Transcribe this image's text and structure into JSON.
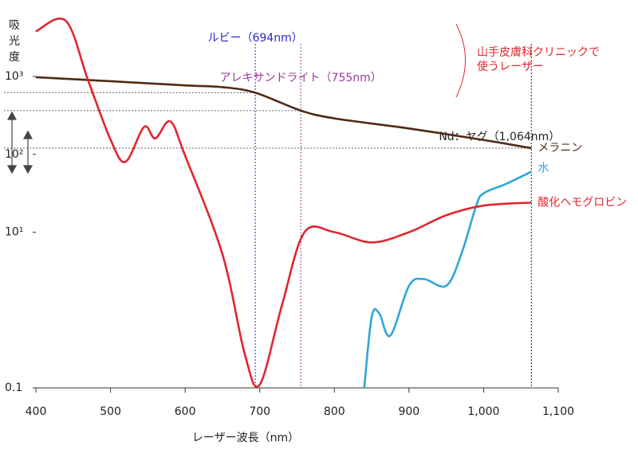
{
  "chart_data": {
    "type": "line",
    "xlabel": "レーザー波長（nm）",
    "ylabel": [
      "吸",
      "光",
      "度"
    ],
    "xlim": [
      400,
      1100
    ],
    "xticks": [
      400,
      500,
      600,
      700,
      800,
      900,
      {
        "value": 1000,
        "label": "1,000"
      },
      {
        "value": 1100,
        "label": "1,100"
      }
    ],
    "ylim": [
      0.1,
      6000
    ],
    "log_y": true,
    "yticks": [
      0.1,
      {
        "value": 10,
        "label": "10¹"
      },
      {
        "value": 100,
        "label": "10²"
      },
      {
        "value": 1000,
        "label": "10³"
      }
    ],
    "series": [
      {
        "name": "メラニン",
        "color": "#4e2a14",
        "x": [
          400,
          500,
          600,
          650,
          694,
          755,
          800,
          900,
          1000,
          1064
        ],
        "values": [
          980,
          870,
          770,
          730,
          620,
          365,
          290,
          215,
          153,
          120
        ]
      },
      {
        "name": "水",
        "color": "#2ea7d8",
        "x": [
          840,
          850,
          860,
          875,
          900,
          920,
          950,
          970,
          990,
          1000,
          1030,
          1064
        ],
        "values": [
          0.1,
          0.82,
          0.91,
          0.47,
          2.05,
          2.5,
          2.05,
          5.2,
          21.8,
          31.6,
          41.7,
          60
        ]
      },
      {
        "name": "酸化ヘモグロビン",
        "color": "#e0262e",
        "x": [
          400,
          440,
          470,
          500,
          520,
          545,
          560,
          580,
          600,
          650,
          680,
          700,
          730,
          760,
          800,
          850,
          900,
          950,
          1000,
          1064
        ],
        "values": [
          3800,
          5200,
          890,
          155,
          80,
          225,
          160,
          265,
          96,
          5.2,
          0.27,
          0.11,
          1.18,
          10,
          10,
          7.4,
          10,
          16.5,
          22,
          24
        ]
      }
    ],
    "markers": [
      {
        "label": "ルビー（694nm）",
        "x": 694,
        "color": "#2a2ac8"
      },
      {
        "label": "アレキサンドライト（755nm）",
        "x": 755,
        "color": "#9a3a9a"
      },
      {
        "label": "Nd：ヤグ（1,064nm）",
        "x": 1064,
        "color": "#222222"
      }
    ],
    "note": [
      "山手皮膚科クリニックで",
      "使うレーザー"
    ]
  }
}
